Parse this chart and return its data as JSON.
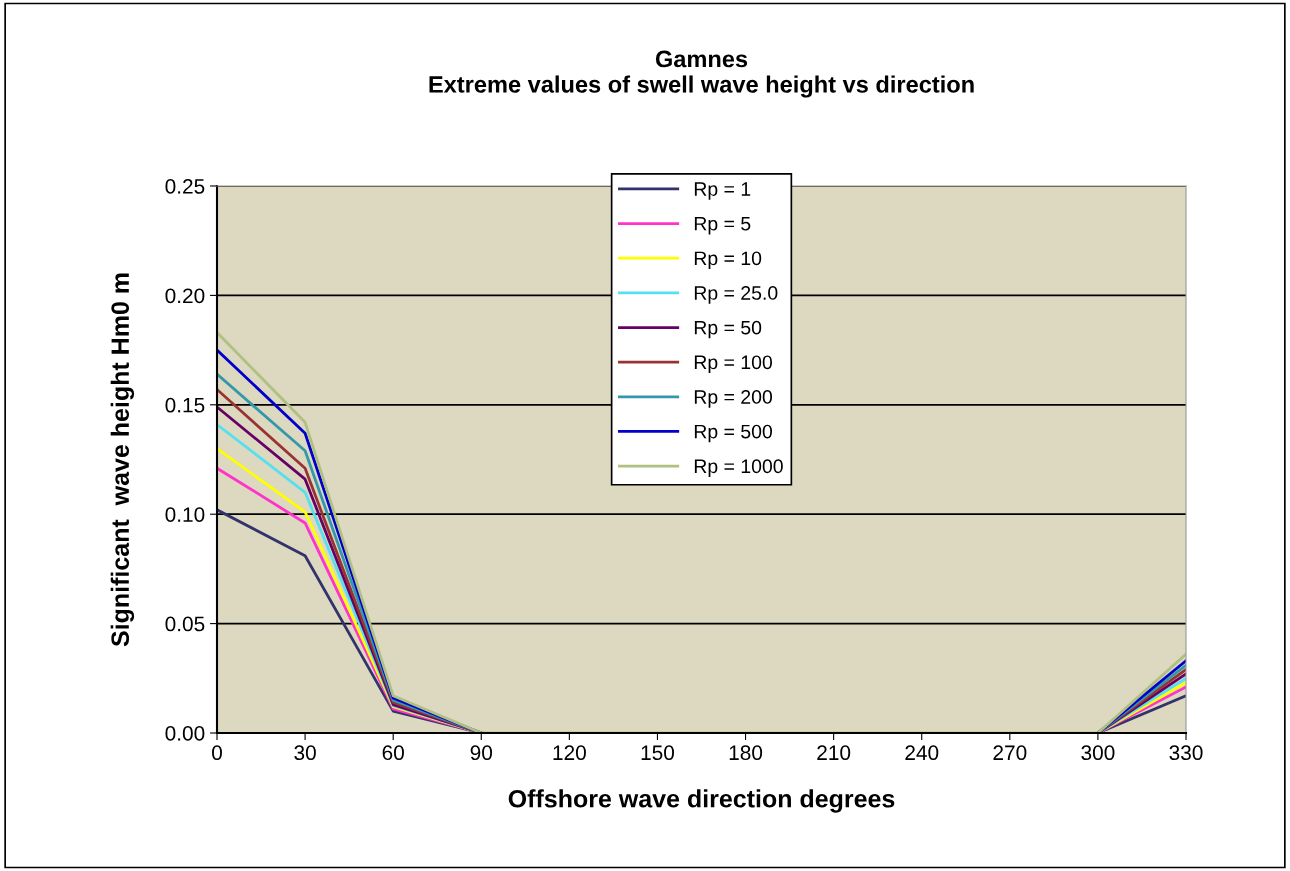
{
  "chart_data": {
    "type": "line",
    "title": "Gamnes\nExtreme values of swell wave height vs direction",
    "xlabel": "Offshore wave direction degrees",
    "ylabel": "Significant  wave height Hm0 m",
    "x": [
      0,
      30,
      60,
      90,
      120,
      150,
      180,
      210,
      240,
      270,
      300,
      330
    ],
    "xlim": [
      0,
      330
    ],
    "xticks": [
      0,
      30,
      60,
      90,
      120,
      150,
      180,
      210,
      240,
      270,
      300,
      330
    ],
    "ylim": [
      0,
      0.25
    ],
    "yticks": [
      {
        "value": 0,
        "label": "0.00"
      },
      {
        "value": 0.05,
        "label": "0.05"
      },
      {
        "value": 0.1,
        "label": "0.10"
      },
      {
        "value": 0.15,
        "label": "0.15"
      },
      {
        "value": 0.2,
        "label": "0.20"
      },
      {
        "value": 0.25,
        "label": "0.25"
      }
    ],
    "grid": "y",
    "legend": "top",
    "marker": "none",
    "line_style": "solid",
    "series": [
      {
        "name": "Rp = 1",
        "color": "#33336b",
        "values": [
          0.102,
          0.081,
          0.01,
          0,
          null,
          null,
          null,
          null,
          null,
          null,
          0,
          0.017
        ]
      },
      {
        "name": "Rp = 5",
        "color": "#ff33cc",
        "values": [
          0.121,
          0.096,
          0.011,
          0,
          null,
          null,
          null,
          null,
          null,
          null,
          0,
          0.021
        ]
      },
      {
        "name": "Rp = 10",
        "color": "#ffff00",
        "values": [
          0.13,
          0.101,
          0.012,
          0,
          null,
          null,
          null,
          null,
          null,
          null,
          0,
          0.023
        ]
      },
      {
        "name": "Rp = 25.0",
        "color": "#55e0f0",
        "values": [
          0.141,
          0.11,
          0.0125,
          0,
          null,
          null,
          null,
          null,
          null,
          null,
          0,
          0.025
        ]
      },
      {
        "name": "Rp = 50",
        "color": "#660066",
        "values": [
          0.149,
          0.116,
          0.013,
          0,
          null,
          null,
          null,
          null,
          null,
          null,
          0,
          0.027
        ]
      },
      {
        "name": "Rp = 100",
        "color": "#993333",
        "values": [
          0.157,
          0.121,
          0.014,
          0,
          null,
          null,
          null,
          null,
          null,
          null,
          0,
          0.029
        ]
      },
      {
        "name": "Rp = 200",
        "color": "#3399aa",
        "values": [
          0.164,
          0.129,
          0.015,
          0,
          null,
          null,
          null,
          null,
          null,
          null,
          0,
          0.031
        ]
      },
      {
        "name": "Rp = 500",
        "color": "#0000cc",
        "values": [
          0.175,
          0.137,
          0.016,
          0,
          null,
          null,
          null,
          null,
          null,
          null,
          0,
          0.033
        ]
      },
      {
        "name": "Rp = 1000",
        "color": "#b0c080",
        "values": [
          0.183,
          0.142,
          0.017,
          0,
          0,
          0,
          0,
          0,
          0,
          0,
          0,
          0.036
        ]
      }
    ]
  }
}
